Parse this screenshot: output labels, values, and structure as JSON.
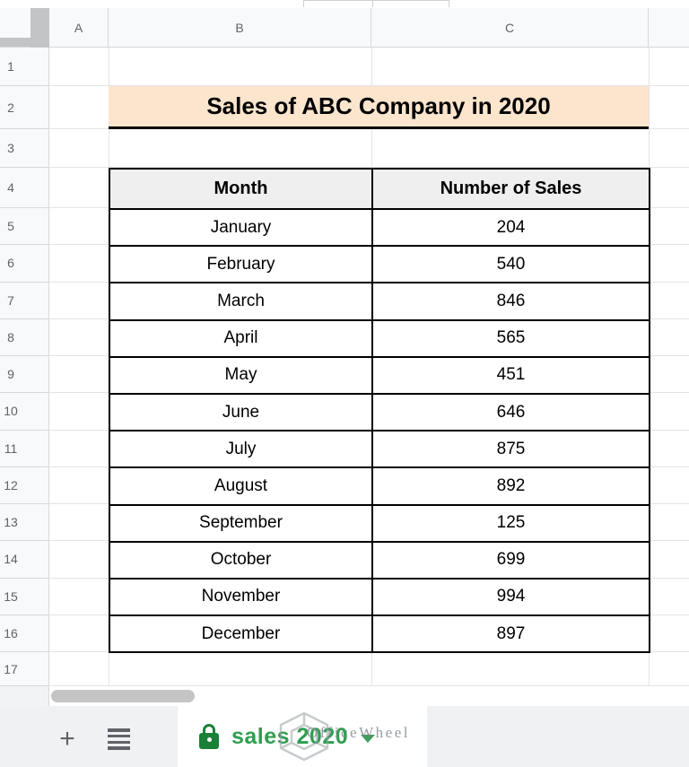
{
  "grid": {
    "column_headers": [
      "A",
      "B",
      "C",
      ""
    ],
    "row_numbers": [
      "1",
      "2",
      "3",
      "4",
      "5",
      "6",
      "7",
      "8",
      "9",
      "10",
      "11",
      "12",
      "13",
      "14",
      "15",
      "16",
      "17"
    ]
  },
  "title_banner": {
    "text": "Sales of ABC Company in 2020"
  },
  "table": {
    "headers": [
      "Month",
      "Number of Sales"
    ],
    "rows": [
      [
        "January",
        "204"
      ],
      [
        "February",
        "540"
      ],
      [
        "March",
        "846"
      ],
      [
        "April",
        "565"
      ],
      [
        "May",
        "451"
      ],
      [
        "June",
        "646"
      ],
      [
        "July",
        "875"
      ],
      [
        "August",
        "892"
      ],
      [
        "September",
        "125"
      ],
      [
        "October",
        "699"
      ],
      [
        "November",
        "994"
      ],
      [
        "December",
        "897"
      ]
    ]
  },
  "sheet_bar": {
    "add_sheet_label": "+",
    "active_tab": {
      "label": "sales 2020",
      "locked": true
    }
  },
  "watermark": {
    "text": "OfficeWheel"
  },
  "colors": {
    "banner_bg": "#fce5cd",
    "table_header_bg": "#efefef",
    "tab_text_green": "#2e9e4f",
    "lock_green": "#1a7f37",
    "header_bg": "#f8f9fa",
    "header_text": "#5f6368",
    "gridline": "#e3e3e3",
    "tab_bar_bg": "#f0f1f2",
    "scroll_thumb": "#c4c4c4"
  }
}
